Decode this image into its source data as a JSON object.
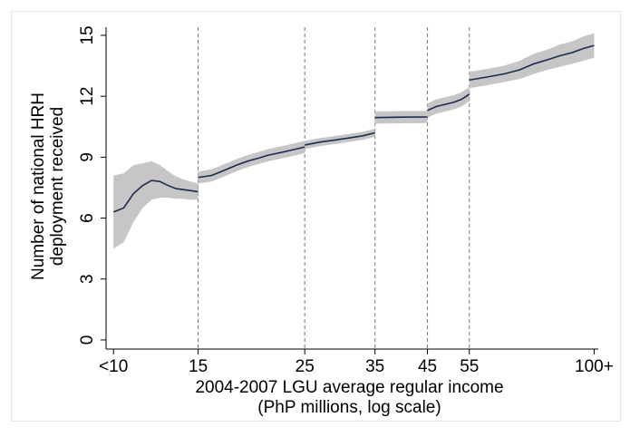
{
  "chart_data": {
    "type": "line",
    "xlabel": [
      "2004-2007 LGU average regular income",
      "(PhP millions, log scale)"
    ],
    "ylabel": [
      "Number of national HRH",
      "deployment received"
    ],
    "xscale": "log",
    "xlim": [
      9.65,
      102
    ],
    "ylim": [
      -0.45,
      15.4
    ],
    "xticks": [
      {
        "value": 10,
        "label": "<10"
      },
      15,
      25,
      35,
      45,
      55,
      {
        "value": 100,
        "label": "100+"
      }
    ],
    "yticks": [
      0,
      3,
      6,
      9,
      12,
      15
    ],
    "vlines": [
      15,
      25,
      35,
      45,
      55
    ],
    "grid": false,
    "x": [
      10,
      10.5,
      11,
      11.5,
      12,
      12.5,
      13,
      13.5,
      14,
      14.5,
      15,
      15,
      15,
      16,
      17,
      18,
      19,
      20,
      21,
      22,
      23,
      24,
      25,
      25,
      25,
      27,
      29,
      31,
      33,
      35,
      35,
      35,
      40,
      45,
      45,
      45,
      47,
      49,
      51,
      53,
      55,
      55,
      55,
      60,
      65,
      70,
      75,
      80,
      85,
      90,
      95,
      100
    ],
    "series": [
      {
        "color": "#1b2a4e",
        "band_color": "#c6c6c6",
        "values": [
          6.3,
          6.5,
          7.2,
          7.6,
          7.85,
          7.8,
          7.6,
          7.45,
          7.4,
          7.35,
          7.3,
          null,
          8.0,
          8.1,
          8.35,
          8.6,
          8.8,
          8.95,
          9.1,
          9.2,
          9.3,
          9.4,
          9.5,
          null,
          9.6,
          9.75,
          9.85,
          9.95,
          10.05,
          10.2,
          null,
          10.95,
          10.97,
          10.98,
          null,
          11.3,
          11.5,
          11.6,
          11.7,
          11.85,
          12.1,
          null,
          12.8,
          12.95,
          13.1,
          13.3,
          13.6,
          13.8,
          14.0,
          14.15,
          14.35,
          14.5
        ],
        "lower": [
          4.5,
          4.8,
          5.8,
          6.5,
          6.9,
          7.0,
          7.0,
          6.95,
          6.95,
          6.9,
          6.9,
          null,
          7.7,
          7.8,
          8.05,
          8.3,
          8.5,
          8.65,
          8.8,
          8.9,
          9.0,
          9.1,
          9.2,
          null,
          9.4,
          9.55,
          9.65,
          9.75,
          9.85,
          10.0,
          null,
          10.65,
          10.67,
          10.68,
          null,
          10.95,
          11.15,
          11.25,
          11.35,
          11.5,
          11.75,
          null,
          12.4,
          12.55,
          12.7,
          12.85,
          13.1,
          13.3,
          13.45,
          13.6,
          13.75,
          13.9
        ],
        "upper": [
          8.1,
          8.2,
          8.6,
          8.7,
          8.8,
          8.6,
          8.3,
          8.05,
          7.9,
          7.8,
          7.7,
          null,
          8.3,
          8.4,
          8.65,
          8.9,
          9.1,
          9.25,
          9.4,
          9.5,
          9.6,
          9.7,
          9.8,
          null,
          9.8,
          9.95,
          10.05,
          10.15,
          10.25,
          10.4,
          null,
          11.25,
          11.27,
          11.28,
          null,
          11.65,
          11.85,
          11.95,
          12.05,
          12.2,
          12.45,
          null,
          13.2,
          13.35,
          13.5,
          13.75,
          14.1,
          14.3,
          14.55,
          14.7,
          14.95,
          15.1
        ]
      }
    ]
  }
}
